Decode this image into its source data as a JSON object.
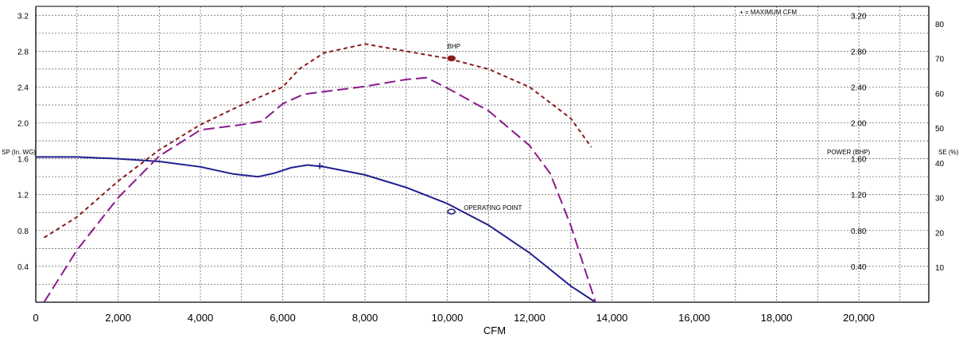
{
  "chart_data": {
    "type": "line",
    "title": "",
    "xlabel": "CFM",
    "ylabel_left": "SP (In. WG)",
    "ylabel_power": "POWER (BHP)",
    "ylabel_right": "SE (%)",
    "legend_note": "+ = MAXIMUM CFM",
    "xlim": [
      0,
      21700
    ],
    "ylim_sp": [
      0,
      3.3
    ],
    "ylim_power": [
      0,
      3.3
    ],
    "ylim_se": [
      0,
      85
    ],
    "grid": true,
    "x_ticks": [
      "0",
      "2,000",
      "4,000",
      "6,000",
      "8,000",
      "10,000",
      "12,000",
      "14,000",
      "16,000",
      "18,000",
      "20,000"
    ],
    "x_tick_values": [
      0,
      2000,
      4000,
      6000,
      8000,
      10000,
      12000,
      14000,
      16000,
      18000,
      20000
    ],
    "sp_ticks": [
      "0.4",
      "0.8",
      "1.2",
      "1.6",
      "2.0",
      "2.4",
      "2.8",
      "3.2"
    ],
    "power_ticks": [
      "0.40",
      "0.80",
      "1.20",
      "1.60",
      "2.00",
      "2.40",
      "2.80",
      "3.20"
    ],
    "se_ticks": [
      "10",
      "20",
      "30",
      "40",
      "50",
      "60",
      "70",
      "80"
    ],
    "series": [
      {
        "name": "SP",
        "color": "#1f1f8f",
        "dash": "solid",
        "axis": "sp",
        "x": [
          0,
          1000,
          2000,
          3000,
          4000,
          4800,
          5400,
          5800,
          6200,
          6600,
          7000,
          8000,
          9000,
          10000,
          11000,
          12000,
          13000,
          13600
        ],
        "y": [
          1.62,
          1.62,
          1.6,
          1.57,
          1.51,
          1.43,
          1.4,
          1.44,
          1.5,
          1.53,
          1.51,
          1.42,
          1.28,
          1.1,
          0.86,
          0.55,
          0.18,
          0.0
        ]
      },
      {
        "name": "BHP",
        "color": "#8b1a1a",
        "dash": "short",
        "axis": "power",
        "x": [
          200,
          1000,
          2000,
          3000,
          4000,
          5000,
          6000,
          6400,
          7000,
          8000,
          9000,
          10000,
          11000,
          12000,
          13000,
          13500
        ],
        "y": [
          0.72,
          0.95,
          1.35,
          1.7,
          1.98,
          2.2,
          2.4,
          2.6,
          2.78,
          2.88,
          2.8,
          2.72,
          2.6,
          2.4,
          2.05,
          1.73
        ]
      },
      {
        "name": "SE",
        "color": "#8b1a8b",
        "dash": "long",
        "axis": "se",
        "x": [
          200,
          1000,
          2000,
          3000,
          4000,
          5000,
          5500,
          6000,
          6500,
          7000,
          8000,
          9000,
          9500,
          10000,
          11000,
          12000,
          12500,
          13000,
          13600
        ],
        "y": [
          0,
          15,
          30,
          42,
          49.5,
          51,
          52,
          57,
          59.7,
          60.5,
          62,
          64,
          64.5,
          61.5,
          55,
          45,
          37,
          22,
          0
        ]
      }
    ],
    "annotations": [
      {
        "text": "BHP",
        "x": 10000,
        "y_power": 2.83
      },
      {
        "text": "OPERATING POINT",
        "x": 10400,
        "y_sp": 1.03
      }
    ],
    "markers": [
      {
        "name": "BHP point",
        "x": 10100,
        "y_power": 2.72,
        "color": "#8b1a1a"
      },
      {
        "name": "operating point",
        "x": 10100,
        "y_sp": 1.01,
        "color": "#1f1f8f"
      }
    ],
    "max_cfm_marks": [
      {
        "x": 6900,
        "y_sp": 1.52
      }
    ]
  }
}
